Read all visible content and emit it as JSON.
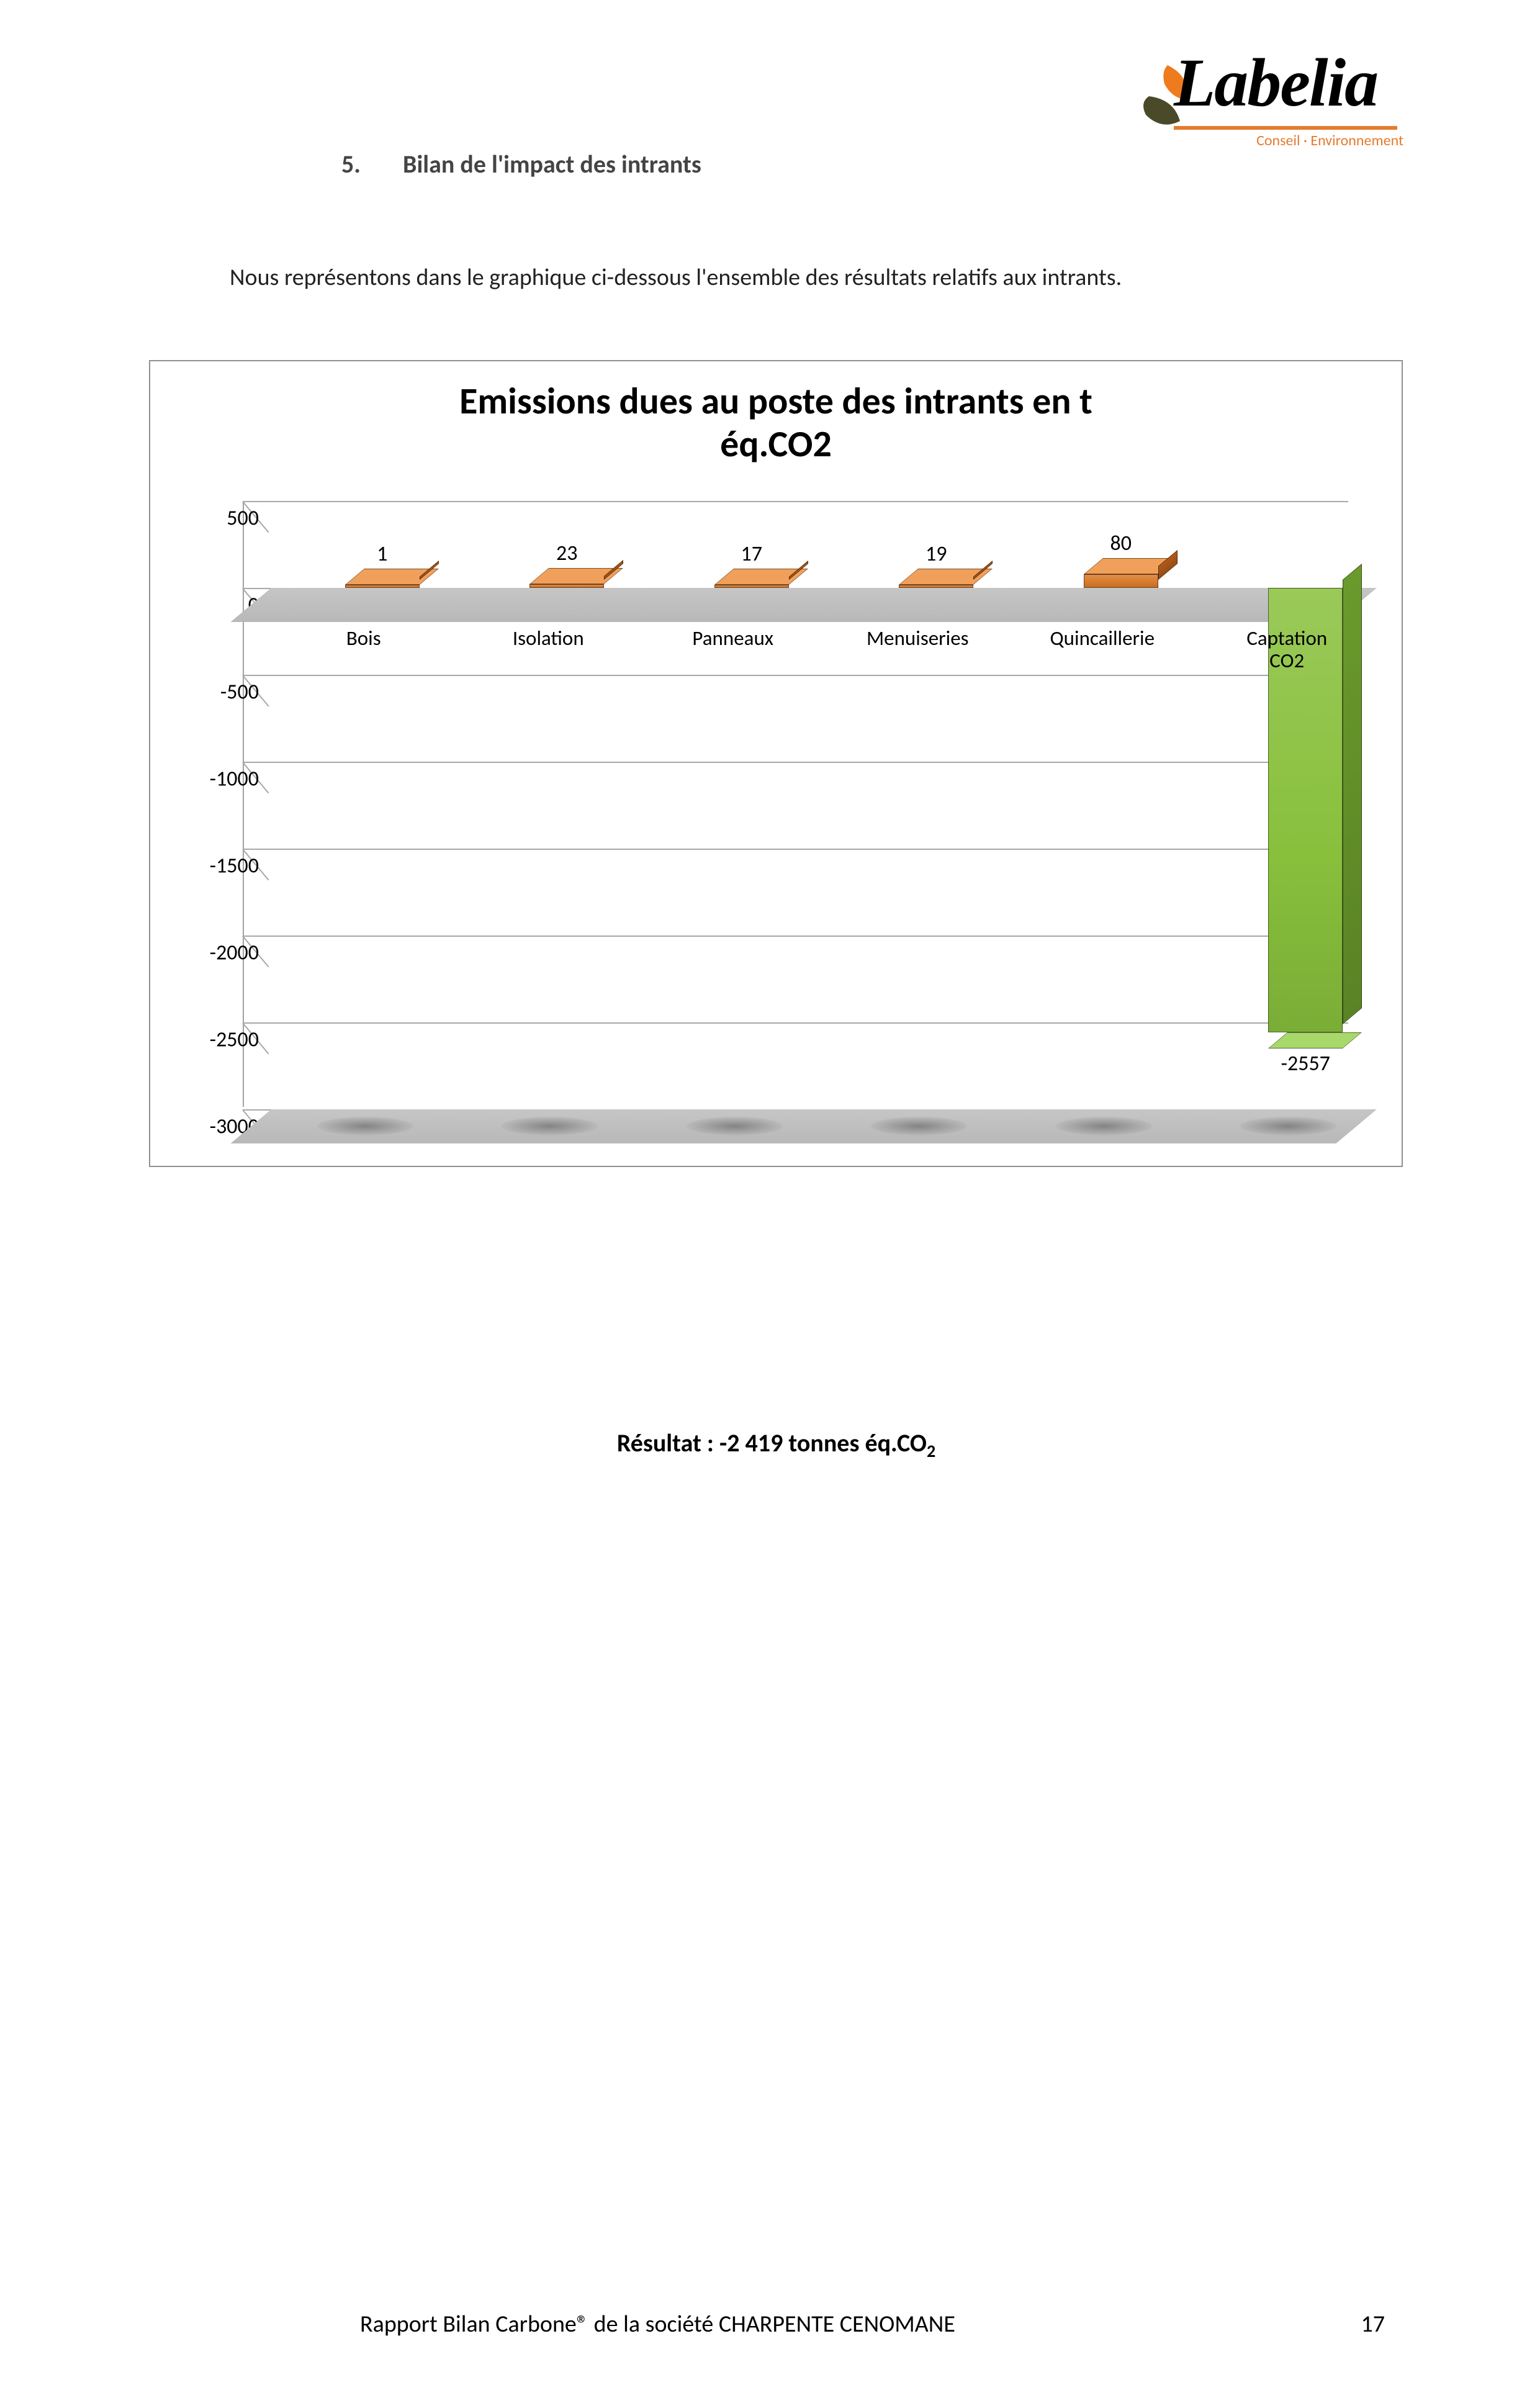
{
  "logo": {
    "brand": "Labelia",
    "tagline": "Conseil · Environnement",
    "leaf_color_top": "#ef7b1f",
    "leaf_color_bottom": "#4a4a2a",
    "underline_color": "#e67a2e"
  },
  "heading": {
    "number": "5.",
    "text": "Bilan de l'impact des intrants"
  },
  "intro": "Nous représentons dans le graphique ci-dessous l'ensemble des résultats relatifs aux intrants.",
  "chart": {
    "type": "bar-3d",
    "title_line1": "Emissions dues au poste des intrants en t",
    "title_line2": "éq.CO2",
    "ylim": [
      -3000,
      500
    ],
    "ytick_step": 500,
    "yticks": [
      500,
      0,
      -500,
      -1000,
      -1500,
      -2000,
      -2500,
      -3000
    ],
    "floor_color": "#c0c0c0",
    "grid_color": "#a8a8a8",
    "background_color": "#ffffff",
    "label_fontsize": 34,
    "title_fontsize": 60,
    "categories": [
      "Bois",
      "Isolation",
      "Panneaux",
      "Menuiseries",
      "Quincaillerie",
      "Captation CO2"
    ],
    "values": [
      1,
      23,
      17,
      19,
      80,
      -2557
    ],
    "bar_colors_front": [
      "#d87a2c",
      "#d87a2c",
      "#d87a2c",
      "#d87a2c",
      "#d87a2c",
      "#88c03c"
    ],
    "bar_colors_top": [
      "#f0a05a",
      "#f0a05a",
      "#f0a05a",
      "#f0a05a",
      "#f0a05a",
      "#a8d86a"
    ],
    "bar_colors_side": [
      "#b05a18",
      "#b05a18",
      "#b05a18",
      "#b05a18",
      "#b05a18",
      "#6a9a2c"
    ]
  },
  "result": {
    "prefix": "Résultat : ",
    "value": "-2 419 tonnes éq.CO",
    "subscript": "2"
  },
  "footer": {
    "text": "Rapport  Bilan Carbone® de la société CHARPENTE CENOMANE",
    "page": "17"
  }
}
